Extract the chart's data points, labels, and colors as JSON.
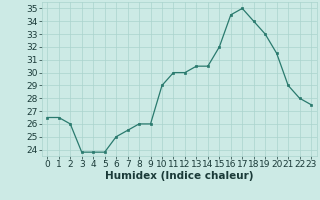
{
  "x": [
    0,
    1,
    2,
    3,
    4,
    5,
    6,
    7,
    8,
    9,
    10,
    11,
    12,
    13,
    14,
    15,
    16,
    17,
    18,
    19,
    20,
    21,
    22,
    23
  ],
  "y": [
    26.5,
    26.5,
    26.0,
    23.8,
    23.8,
    23.8,
    25.0,
    25.5,
    26.0,
    26.0,
    29.0,
    30.0,
    30.0,
    30.5,
    30.5,
    32.0,
    34.5,
    35.0,
    34.0,
    33.0,
    31.5,
    29.0,
    28.0,
    27.5
  ],
  "xlabel": "Humidex (Indice chaleur)",
  "ylim": [
    23.5,
    35.5
  ],
  "xlim": [
    -0.5,
    23.5
  ],
  "yticks": [
    24,
    25,
    26,
    27,
    28,
    29,
    30,
    31,
    32,
    33,
    34,
    35
  ],
  "xticks": [
    0,
    1,
    2,
    3,
    4,
    5,
    6,
    7,
    8,
    9,
    10,
    11,
    12,
    13,
    14,
    15,
    16,
    17,
    18,
    19,
    20,
    21,
    22,
    23
  ],
  "xtick_labels": [
    "0",
    "1",
    "2",
    "3",
    "4",
    "5",
    "6",
    "7",
    "8",
    "9",
    "10",
    "11",
    "12",
    "13",
    "14",
    "15",
    "16",
    "17",
    "18",
    "19",
    "20",
    "21",
    "22",
    "23"
  ],
  "line_color": "#2a7a6e",
  "marker_color": "#2a7a6e",
  "bg_color": "#cceae5",
  "grid_color": "#aad4ce",
  "font_color": "#1a3a38",
  "xlabel_fontsize": 7.5,
  "tick_fontsize": 6.5
}
